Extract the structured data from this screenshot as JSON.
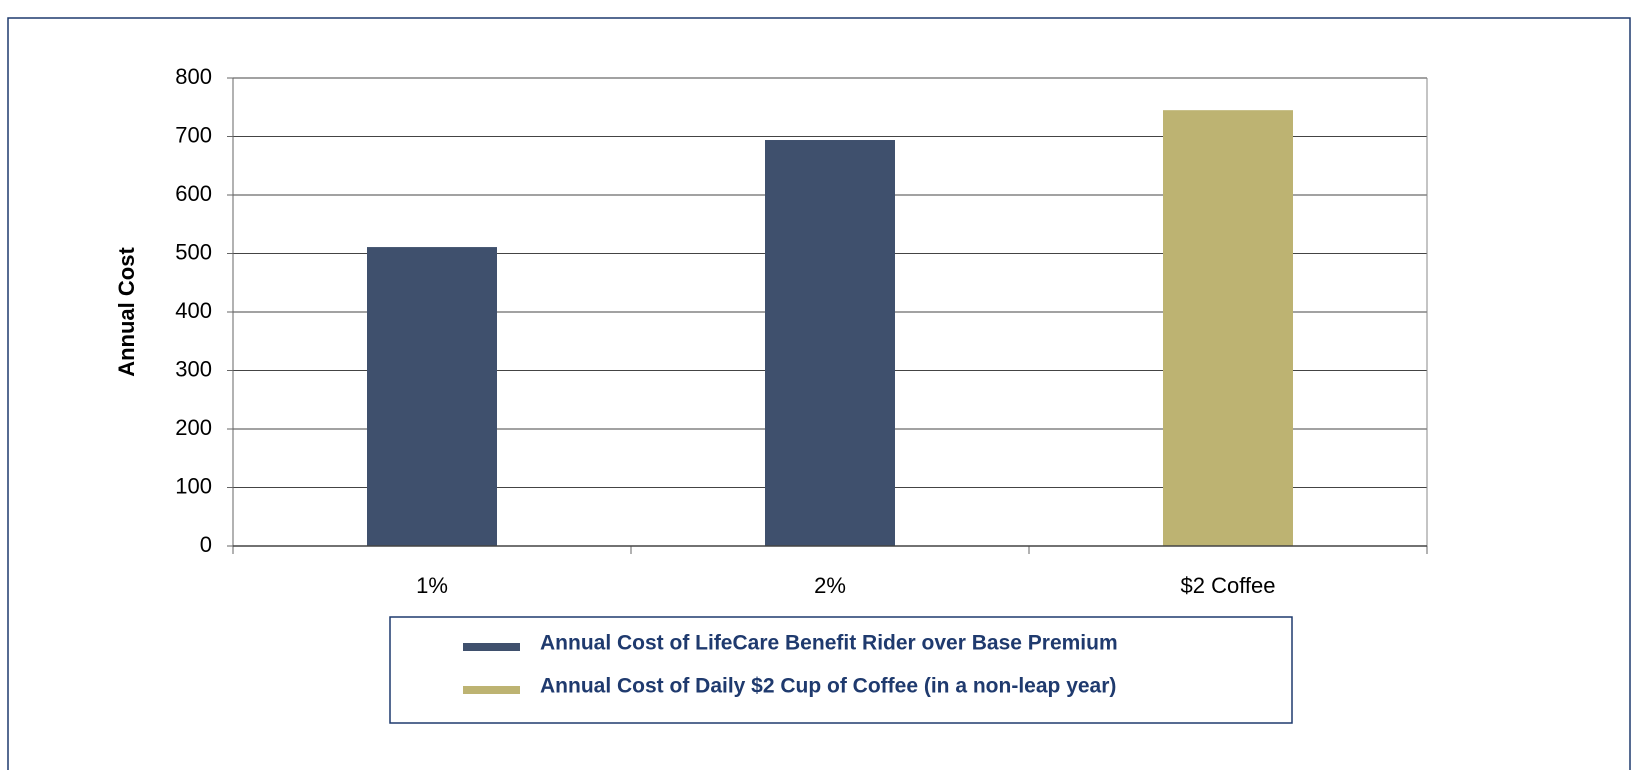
{
  "chart_data": {
    "type": "bar",
    "y_label": "Annual Cost",
    "categories": [
      "1%",
      "2%",
      "$2 Coffee"
    ],
    "series": [
      {
        "name": "Annual Cost of LifeCare Benefit Rider over Base Premium",
        "color": "#3f506d",
        "values": [
          511,
          694,
          null
        ]
      },
      {
        "name": "Annual Cost of Daily $2 Cup of Coffee (in a non-leap year)",
        "color": "#bdb372",
        "values": [
          null,
          null,
          745
        ]
      }
    ],
    "ylim": [
      0,
      800
    ],
    "yticks": [
      0,
      100,
      200,
      300,
      400,
      500,
      600,
      700,
      800
    ],
    "grid": true
  }
}
